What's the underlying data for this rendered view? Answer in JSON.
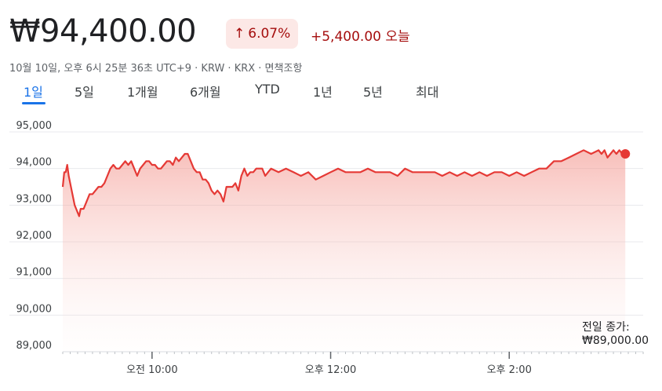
{
  "header": {
    "price": "₩94,400.00",
    "pct_change": "6.07%",
    "arrow": "↑",
    "abs_change": "+5,400.00 오늘",
    "meta": "10월 10일, 오후 6시 25분 36초 UTC+9 · KRW · KRX · 면책조항"
  },
  "tabs": [
    "1일",
    "5일",
    "1개월",
    "6개월",
    "YTD",
    "1년",
    "5년",
    "최대"
  ],
  "active_tab": 0,
  "colors": {
    "line": "#e53935",
    "fill": "#f4b9b5",
    "dot": "#e53935",
    "up": "#a50e0e",
    "tab_active": "#1a73e8",
    "grid": "#e8eaed"
  },
  "prev_close": {
    "label": "전일 종가:",
    "value": "₩89,000.00"
  },
  "chart_data": {
    "type": "area",
    "title": "",
    "xlabel": "",
    "ylabel": "",
    "x_unit": "minutes since 09:00 KST",
    "xlim": [
      0,
      390
    ],
    "ylim": [
      89000,
      95000
    ],
    "yticks": [
      89000,
      90000,
      91000,
      92000,
      93000,
      94000,
      95000
    ],
    "ytick_labels": [
      "89,000",
      "90,000",
      "91,000",
      "92,000",
      "93,000",
      "94,000",
      "95,000"
    ],
    "xticks": [
      60,
      180,
      300
    ],
    "xtick_labels": [
      "오전 10:00",
      "오후 12:00",
      "오후 2:00"
    ],
    "baseline": 89000,
    "grid": true,
    "series": [
      {
        "x": [
          0,
          1,
          2,
          3,
          4,
          5,
          6,
          7,
          8,
          9,
          10,
          11,
          12,
          13,
          14,
          16,
          18,
          20,
          22,
          24,
          26,
          28,
          30,
          32,
          34,
          36,
          38,
          40,
          42,
          44,
          46,
          48,
          50,
          52,
          54,
          56,
          58,
          60,
          62,
          64,
          66,
          68,
          70,
          72,
          74,
          76,
          78,
          80,
          82,
          84,
          86,
          88,
          90,
          92,
          94,
          96,
          98,
          100,
          102,
          104,
          106,
          108,
          110,
          112,
          114,
          116,
          118,
          120,
          122,
          124,
          126,
          128,
          130,
          132,
          134,
          136,
          138,
          140,
          145,
          150,
          155,
          160,
          165,
          170,
          175,
          180,
          185,
          190,
          195,
          200,
          205,
          210,
          215,
          220,
          225,
          230,
          235,
          240,
          245,
          250,
          255,
          260,
          265,
          270,
          275,
          280,
          285,
          290,
          295,
          300,
          305,
          310,
          315,
          320,
          325,
          330,
          335,
          340,
          345,
          350,
          355,
          360,
          362,
          364,
          366,
          368,
          370,
          372,
          374,
          376,
          378
        ],
        "y": [
          93500,
          93900,
          93900,
          94100,
          93800,
          93600,
          93400,
          93200,
          93000,
          92900,
          92800,
          92700,
          92900,
          92900,
          92900,
          93100,
          93300,
          93300,
          93400,
          93500,
          93500,
          93600,
          93800,
          94000,
          94100,
          94000,
          94000,
          94100,
          94200,
          94100,
          94200,
          94000,
          93800,
          94000,
          94100,
          94200,
          94200,
          94100,
          94100,
          94000,
          94000,
          94100,
          94200,
          94200,
          94100,
          94300,
          94200,
          94300,
          94400,
          94400,
          94200,
          94000,
          93900,
          93900,
          93700,
          93700,
          93600,
          93400,
          93300,
          93400,
          93300,
          93100,
          93500,
          93500,
          93500,
          93600,
          93400,
          93800,
          94000,
          93800,
          93900,
          93900,
          94000,
          94000,
          94000,
          93800,
          93900,
          94000,
          93900,
          94000,
          93900,
          93800,
          93900,
          93700,
          93800,
          93900,
          94000,
          93900,
          93900,
          93900,
          94000,
          93900,
          93900,
          93900,
          93800,
          94000,
          93900,
          93900,
          93900,
          93900,
          93800,
          93900,
          93800,
          93900,
          93800,
          93900,
          93800,
          93900,
          93900,
          93800,
          93900,
          93800,
          93900,
          94000,
          94000,
          94200,
          94200,
          94300,
          94400,
          94500,
          94400,
          94500,
          94400,
          94500,
          94300,
          94400,
          94500,
          94400,
          94500,
          94400,
          94400
        ]
      }
    ],
    "last_point": {
      "x": 378,
      "y": 94400
    }
  }
}
